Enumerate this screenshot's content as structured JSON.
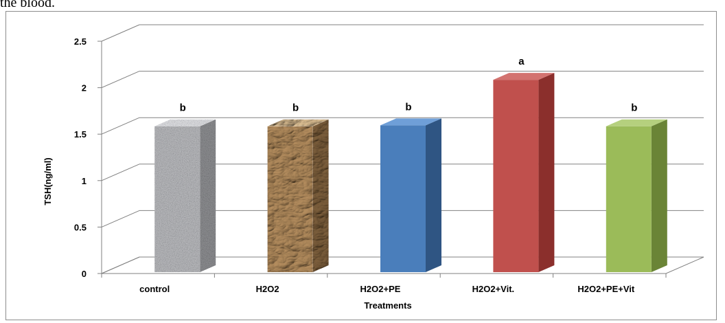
{
  "header_text": "the blood.",
  "chart_data": {
    "type": "bar",
    "categories": [
      "control",
      "H2O2",
      "H2O2+PE",
      "H2O2+Vit.",
      "H2O2+PE+Vit"
    ],
    "values": [
      1.57,
      1.57,
      1.58,
      2.07,
      1.57
    ],
    "significance_letters": [
      "b",
      "b",
      "b",
      "a",
      "b"
    ],
    "xlabel": "Treatments",
    "ylabel": "TSH(ng/ml)",
    "ylim": [
      0,
      2.5
    ],
    "yticks": [
      "0",
      "0.5",
      "1",
      "1.5",
      "2",
      "2.5"
    ],
    "grid": true,
    "bar_colors": [
      {
        "front": "#b9babc",
        "top": "#e2e3e5",
        "side": "#8d8e90",
        "texture": "granite"
      },
      {
        "front": "#b48d5e",
        "top": "#d9bc91",
        "side": "#7d5f3c",
        "texture": "crumpled-paper"
      },
      {
        "front": "#4a7ebb",
        "top": "#6f9fd8",
        "side": "#2f5583",
        "texture": "solid"
      },
      {
        "front": "#c0504d",
        "top": "#d37370",
        "side": "#8b2f2c",
        "texture": "solid"
      },
      {
        "front": "#9bbb59",
        "top": "#b5d07e",
        "side": "#6a8436",
        "texture": "solid"
      }
    ]
  }
}
